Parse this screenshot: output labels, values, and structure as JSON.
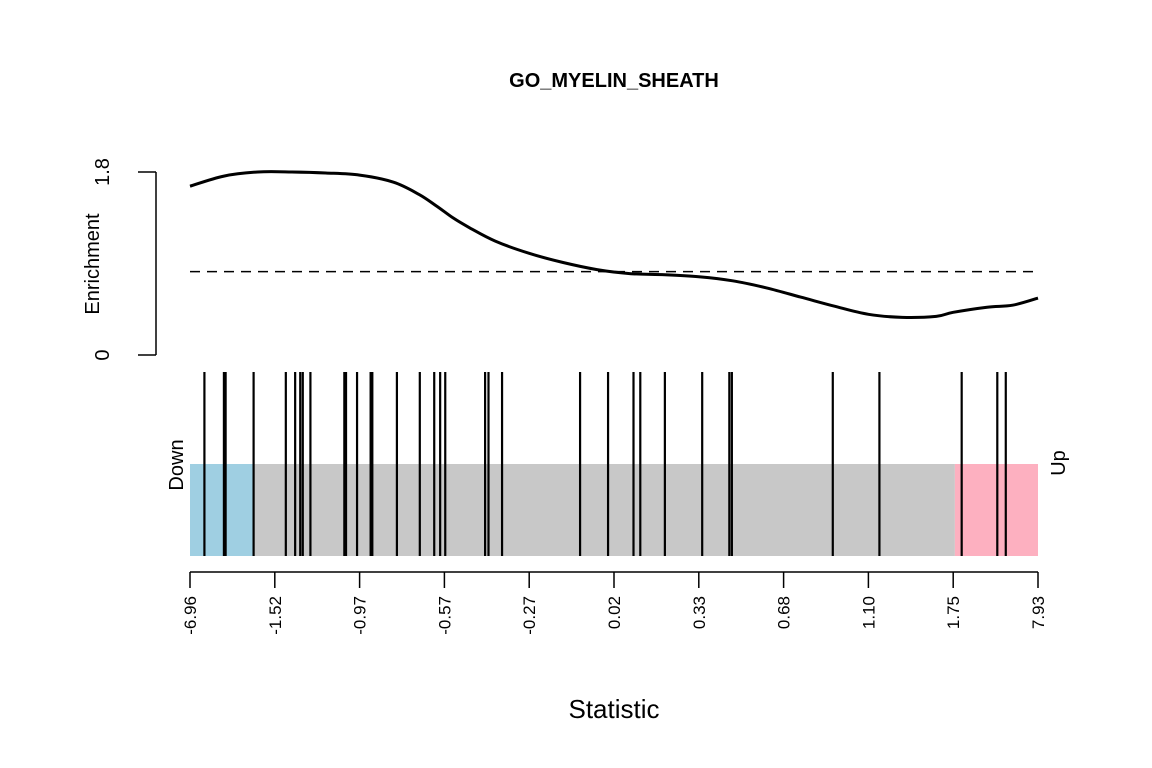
{
  "chart_data": {
    "type": "barcode",
    "title": "GO_MYELIN_SHEATH",
    "xlabel": "Statistic",
    "ylabel": "Enrichment",
    "y_ticks": [
      "0",
      "1.8"
    ],
    "ylim": [
      0,
      1.8
    ],
    "x_tick_labels": [
      "-6.96",
      "-1.52",
      "-0.97",
      "-0.57",
      "-0.27",
      "0.02",
      "0.33",
      "0.68",
      "1.10",
      "1.75",
      "7.93"
    ],
    "down_label": "Down",
    "up_label": "Up",
    "colors": {
      "down_region": "#9fcfe2",
      "middle_region": "#c8c8c8",
      "up_region": "#fdb0c0",
      "curve": "#000000",
      "bars": "#000000"
    },
    "regions": {
      "down_end": 0.075,
      "up_start": 0.902
    },
    "enrichment_curve": {
      "x": [
        0.0,
        0.04,
        0.08,
        0.12,
        0.16,
        0.2,
        0.24,
        0.27,
        0.29,
        0.31,
        0.33,
        0.36,
        0.4,
        0.44,
        0.48,
        0.52,
        0.56,
        0.6,
        0.64,
        0.68,
        0.72,
        0.76,
        0.8,
        0.84,
        0.88,
        0.9,
        0.94,
        0.97,
        1.0
      ],
      "y": [
        1.66,
        1.76,
        1.8,
        1.8,
        1.79,
        1.77,
        1.7,
        1.58,
        1.47,
        1.35,
        1.25,
        1.12,
        1.0,
        0.91,
        0.84,
        0.8,
        0.79,
        0.77,
        0.73,
        0.66,
        0.57,
        0.48,
        0.4,
        0.37,
        0.38,
        0.42,
        0.47,
        0.49,
        0.56
      ]
    },
    "reference_line": 0.82,
    "barcode_positions": [
      0.017,
      0.04,
      0.042,
      0.075,
      0.113,
      0.124,
      0.13,
      0.133,
      0.142,
      0.182,
      0.184,
      0.197,
      0.213,
      0.215,
      0.244,
      0.271,
      0.288,
      0.295,
      0.301,
      0.348,
      0.352,
      0.368,
      0.46,
      0.493,
      0.523,
      0.531,
      0.56,
      0.604,
      0.636,
      0.639,
      0.758,
      0.813,
      0.91,
      0.952,
      0.962
    ]
  }
}
